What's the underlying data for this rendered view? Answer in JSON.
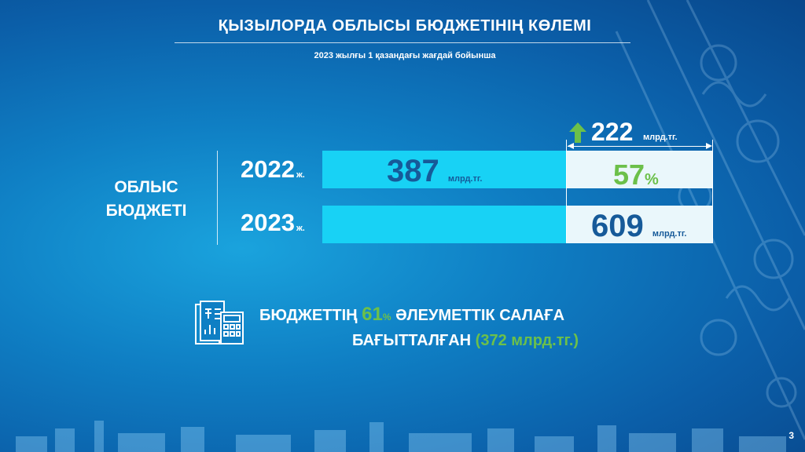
{
  "title": "ҚЫЗЫЛОРДА ОБЛЫСЫ БЮДЖЕТІНІҢ КӨЛЕМІ",
  "subtitle": "2023 жылғы 1 қазандағы жағдай бойынша",
  "side_label": {
    "line1": "ОБЛЫС",
    "line2": "БЮДЖЕТІ"
  },
  "rows": [
    {
      "year": "2022",
      "year_suffix": "ж.",
      "value": "387",
      "unit": "млрд.тг."
    },
    {
      "year": "2023",
      "year_suffix": "ж.",
      "value": "609",
      "unit": "млрд.тг."
    }
  ],
  "growth": {
    "value": "222",
    "unit": "млрд.тг.",
    "percent": "57",
    "percent_sign": "%"
  },
  "info": {
    "part1": "БЮДЖЕТТІҢ",
    "percent": "61",
    "percent_sign": "%",
    "part2": "ӘЛЕУМЕТТІК САЛАҒА",
    "part3": "БАҒЫТТАЛҒАН",
    "amount": "(372 млрд.тг.)"
  },
  "page_number": "3",
  "colors": {
    "bar": "#18d2f5",
    "accent_green": "#6cc04a",
    "number_blue": "#165a99"
  },
  "chart_data": {
    "type": "bar",
    "categories": [
      "2022",
      "2023"
    ],
    "values": [
      387,
      609
    ]
  }
}
